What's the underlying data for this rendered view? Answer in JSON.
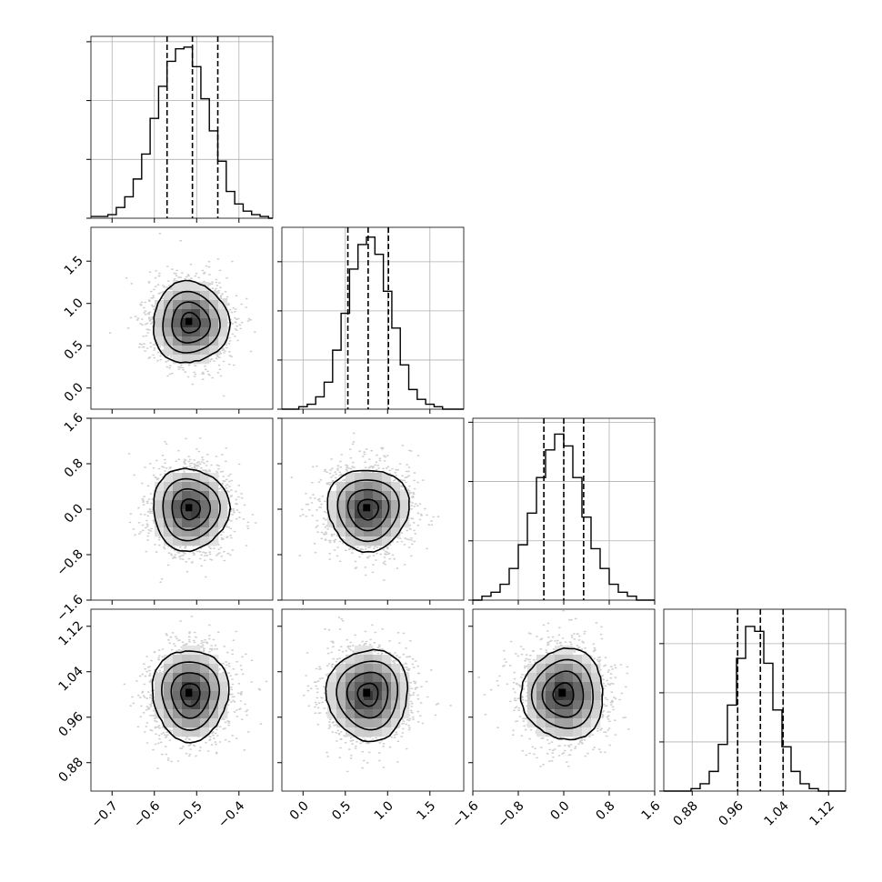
{
  "chart_data": {
    "type": "corner",
    "colors": {
      "line": "#000000",
      "grid": "#b0b0b0",
      "points": "#a9a9a9",
      "density_low": "#ffffff",
      "density_high": "#000000"
    },
    "parameters": [
      {
        "range": [
          -0.75,
          -0.32
        ],
        "x_ticks": [
          -0.7,
          -0.6,
          -0.5,
          -0.4
        ],
        "x_tick_labels": [
          "−0.7",
          "−0.6",
          "−0.5",
          "−0.4"
        ],
        "y_tick_labels": [],
        "quantiles": [
          -0.57,
          -0.51,
          -0.45
        ],
        "hist": {
          "edges_start": -0.75,
          "bin_width": 0.02,
          "counts": [
            1,
            1,
            2,
            6,
            12,
            22,
            36,
            56,
            74,
            88,
            95,
            96,
            85,
            67,
            49,
            32,
            15,
            8,
            4,
            2,
            1,
            0
          ],
          "y_ticks": [
            0,
            33,
            66,
            99
          ],
          "y_max": 102
        },
        "center": -0.515,
        "sd": 0.045
      },
      {
        "range": [
          -0.25,
          1.9
        ],
        "x_ticks": [
          0.0,
          0.5,
          1.0,
          1.5
        ],
        "x_tick_labels": [
          "0.0",
          "0.5",
          "1.0",
          "1.5"
        ],
        "y_ticks": [
          0.0,
          0.5,
          1.0,
          1.5
        ],
        "y_tick_labels": [
          "0.0",
          "0.5",
          "1.0",
          "1.5"
        ],
        "quantiles": [
          0.53,
          0.77,
          1.01
        ],
        "hist": {
          "edges_start": -0.25,
          "bin_width": 0.1,
          "counts": [
            0,
            0,
            1,
            2,
            5,
            11,
            24,
            39,
            57,
            67,
            70,
            63,
            48,
            33,
            18,
            8,
            4,
            2,
            1,
            0,
            0,
            0
          ],
          "y_ticks": [
            0,
            20,
            40,
            60
          ],
          "y_max": 74
        },
        "center": 0.77,
        "sd": 0.24
      },
      {
        "range": [
          -1.6,
          1.6
        ],
        "x_ticks": [
          -1.6,
          -0.8,
          0.0,
          0.8,
          1.6
        ],
        "x_tick_labels": [
          "−1.6",
          "−0.8",
          "0.0",
          "0.8",
          "1.6"
        ],
        "y_ticks": [
          -1.6,
          -0.8,
          0.0,
          0.8,
          1.6
        ],
        "y_tick_labels": [
          "−1.6",
          "−0.8",
          "0.0",
          "0.8",
          "1.6"
        ],
        "quantiles": [
          -0.35,
          0.0,
          0.35
        ],
        "hist": {
          "edges_start": -1.6,
          "bin_width": 0.16,
          "counts": [
            0,
            1,
            2,
            4,
            8,
            14,
            22,
            31,
            38,
            42,
            39,
            31,
            21,
            13,
            8,
            4,
            2,
            1,
            0,
            0
          ],
          "y_ticks": [
            0,
            15,
            30,
            45
          ],
          "y_max": 46
        },
        "center": 0.0,
        "sd": 0.36
      },
      {
        "range": [
          0.83,
          1.15
        ],
        "x_ticks": [
          0.88,
          0.96,
          1.04,
          1.12
        ],
        "x_tick_labels": [
          "0.88",
          "0.96",
          "1.04",
          "1.12"
        ],
        "y_ticks": [
          0.88,
          0.96,
          1.04,
          1.12
        ],
        "y_tick_labels": [
          "0.88",
          "0.96",
          "1.04",
          "1.12"
        ],
        "quantiles": [
          0.96,
          1.0,
          1.04
        ],
        "hist": {
          "edges_start": 0.83,
          "bin_width": 0.016,
          "counts": [
            0,
            0,
            0,
            1,
            3,
            8,
            19,
            35,
            54,
            67,
            65,
            52,
            33,
            18,
            8,
            3,
            1,
            0,
            0,
            0
          ],
          "y_ticks": [
            0,
            20,
            40,
            60
          ],
          "y_max": 74
        },
        "center": 1.0,
        "sd": 0.04
      }
    ]
  }
}
